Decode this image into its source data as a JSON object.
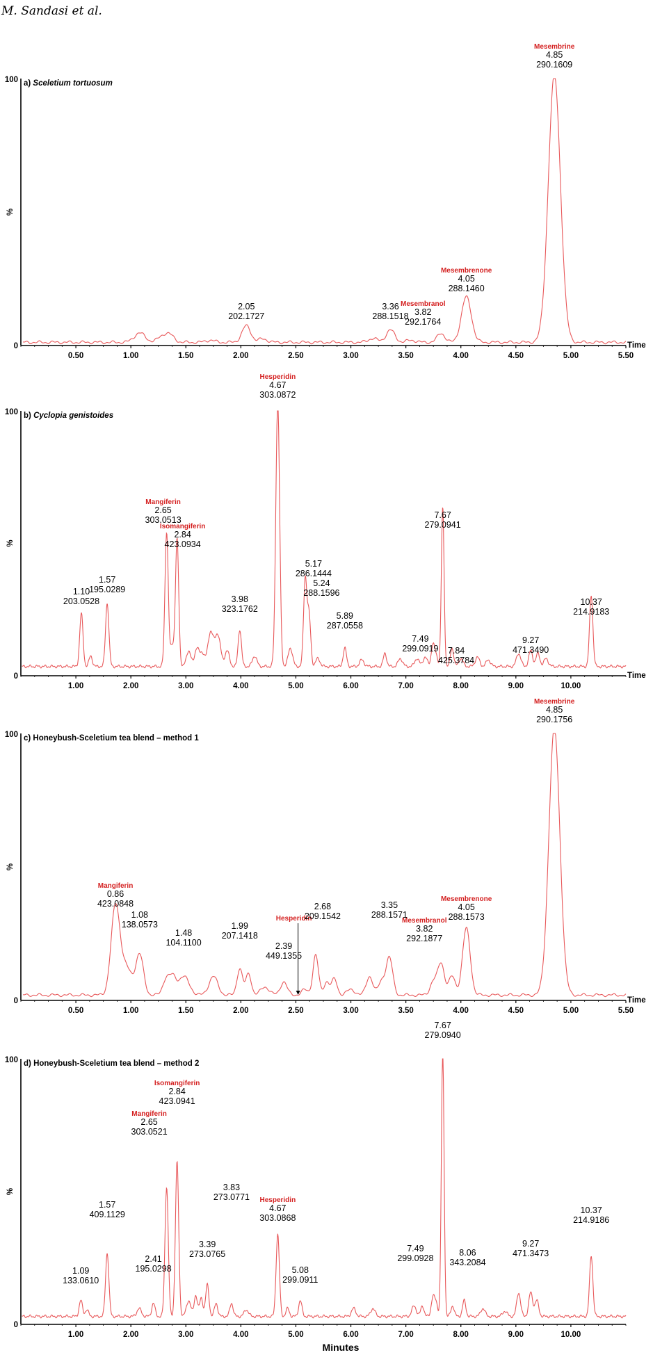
{
  "header": {
    "author": "M. Sandasi et al."
  },
  "colors": {
    "trace": "#e8585a",
    "label": "#d42020",
    "axis": "#000000"
  },
  "chart_data": [
    {
      "type": "line",
      "title_prefix": "a)",
      "title_main": "Sceletium tortuosum",
      "title_italic": true,
      "ylabel": "%",
      "y_top_label": "100",
      "y_zero_label": "0",
      "xlabel_end": "Time",
      "xlim": [
        0,
        5.5
      ],
      "ylim": [
        0,
        100
      ],
      "xticks": [
        "0.50",
        "1.00",
        "1.50",
        "2.00",
        "2.50",
        "3.00",
        "3.50",
        "4.00",
        "4.50",
        "5.00",
        "5.50"
      ],
      "baseline": 1.2,
      "peaks": [
        [
          1.08,
          3.5,
          0.05
        ],
        [
          1.3,
          2.5,
          0.05
        ],
        [
          1.36,
          1.8,
          0.04
        ],
        [
          1.72,
          0.8,
          0.04
        ],
        [
          2.05,
          6.2,
          0.04
        ],
        [
          2.2,
          1.3,
          0.04
        ],
        [
          3.2,
          1.5,
          0.04
        ],
        [
          3.36,
          4.6,
          0.04
        ],
        [
          3.55,
          0.8,
          0.04
        ],
        [
          3.82,
          3.4,
          0.035
        ],
        [
          4.05,
          17,
          0.045
        ],
        [
          4.85,
          100,
          0.055
        ]
      ],
      "annotations": [
        {
          "x": 2.05,
          "name": "",
          "lines": [
            "2.05",
            "202.1727"
          ]
        },
        {
          "x": 3.36,
          "name": "",
          "lines": [
            "3.36",
            "288.1518"
          ]
        },
        {
          "x": 3.82,
          "name": "Mesembranol",
          "lines": [
            "3.82",
            "292.1764"
          ]
        },
        {
          "x": 4.05,
          "name": "Mesembrenone",
          "lines": [
            "4.05",
            "288.1460"
          ]
        },
        {
          "x": 4.85,
          "name": "Mesembrine",
          "lines": [
            "4.85",
            "290.1609"
          ]
        }
      ]
    },
    {
      "type": "line",
      "title_prefix": "b)",
      "title_main": "Cyclopia genistoides",
      "title_italic": true,
      "ylabel": "%",
      "y_top_label": "100",
      "y_zero_label": "0",
      "xlabel_end": "Time",
      "xlim": [
        0,
        11
      ],
      "ylim": [
        0,
        100
      ],
      "xticks": [
        "1.00",
        "2.00",
        "3.00",
        "4.00",
        "5.00",
        "6.00",
        "7.00",
        "8.00",
        "9.00",
        "10.00"
      ],
      "baseline": 3.5,
      "peaks": [
        [
          1.1,
          20,
          0.03
        ],
        [
          1.27,
          4,
          0.03
        ],
        [
          1.57,
          24,
          0.03
        ],
        [
          2.65,
          51,
          0.03
        ],
        [
          2.75,
          8,
          0.03
        ],
        [
          2.84,
          48,
          0.03
        ],
        [
          3.05,
          6,
          0.04
        ],
        [
          3.2,
          7,
          0.04
        ],
        [
          3.3,
          5,
          0.04
        ],
        [
          3.45,
          13,
          0.05
        ],
        [
          3.58,
          12,
          0.05
        ],
        [
          3.75,
          6,
          0.04
        ],
        [
          3.98,
          14,
          0.03
        ],
        [
          4.25,
          4,
          0.04
        ],
        [
          4.67,
          100,
          0.035
        ],
        [
          4.9,
          7,
          0.04
        ],
        [
          5.17,
          33,
          0.03
        ],
        [
          5.24,
          19,
          0.03
        ],
        [
          5.4,
          3,
          0.04
        ],
        [
          5.89,
          7,
          0.03
        ],
        [
          6.2,
          2.5,
          0.04
        ],
        [
          6.62,
          5,
          0.03
        ],
        [
          6.9,
          3,
          0.04
        ],
        [
          7.2,
          3,
          0.04
        ],
        [
          7.35,
          3.5,
          0.04
        ],
        [
          7.49,
          8,
          0.03
        ],
        [
          7.55,
          4,
          0.03
        ],
        [
          7.67,
          60,
          0.025
        ],
        [
          7.84,
          7,
          0.03
        ],
        [
          8.0,
          3,
          0.04
        ],
        [
          8.3,
          3.5,
          0.04
        ],
        [
          8.5,
          2.5,
          0.04
        ],
        [
          9.05,
          5,
          0.04
        ],
        [
          9.27,
          6,
          0.035
        ],
        [
          9.4,
          5,
          0.035
        ],
        [
          9.55,
          3,
          0.04
        ],
        [
          10.37,
          27,
          0.03
        ]
      ],
      "annotations": [
        {
          "x": 1.1,
          "name": "",
          "lines": [
            "1.10",
            "203.0528"
          ]
        },
        {
          "x": 1.57,
          "name": "",
          "lines": [
            "1.57",
            "195.0289"
          ]
        },
        {
          "x": 2.65,
          "name": "Mangiferin",
          "lines": [
            "2.65",
            "303.0513"
          ]
        },
        {
          "x": 2.84,
          "name": "Isomangiferin",
          "lines": [
            "2.84",
            "423.0934"
          ]
        },
        {
          "x": 3.98,
          "name": "",
          "lines": [
            "3.98",
            "323.1762"
          ]
        },
        {
          "x": 4.67,
          "name": "Hesperidin",
          "lines": [
            "4.67",
            "303.0872"
          ]
        },
        {
          "x": 5.17,
          "name": "",
          "lines": [
            "5.17",
            "286.1444"
          ]
        },
        {
          "x": 5.24,
          "name": "",
          "lines": [
            "5.24",
            "288.1596"
          ]
        },
        {
          "x": 5.89,
          "name": "",
          "lines": [
            "5.89",
            "287.0558"
          ]
        },
        {
          "x": 7.49,
          "name": "",
          "lines": [
            "7.49",
            "299.0919"
          ]
        },
        {
          "x": 7.67,
          "name": "",
          "lines": [
            "7.67",
            "279.0941"
          ]
        },
        {
          "x": 7.84,
          "name": "",
          "lines": [
            "7.84",
            "425.3784"
          ]
        },
        {
          "x": 9.27,
          "name": "",
          "lines": [
            "9.27",
            "471.3490"
          ]
        },
        {
          "x": 10.37,
          "name": "",
          "lines": [
            "10.37",
            "214.9183"
          ]
        }
      ]
    },
    {
      "type": "line",
      "title_prefix": "c)",
      "title_main": "Honeybush-Sceletium tea blend – method 1",
      "title_italic": false,
      "ylabel": "%",
      "y_top_label": "100",
      "y_zero_label": "0",
      "xlabel_end": "Time",
      "xlim": [
        0,
        5.5
      ],
      "ylim": [
        0,
        100
      ],
      "xticks": [
        "0.50",
        "1.00",
        "1.50",
        "2.00",
        "2.50",
        "3.00",
        "3.50",
        "4.00",
        "4.50",
        "5.00",
        "5.50"
      ],
      "baseline": 2,
      "peaks": [
        [
          0.86,
          33,
          0.04
        ],
        [
          0.96,
          10,
          0.05
        ],
        [
          1.08,
          15,
          0.035
        ],
        [
          1.32,
          6,
          0.03
        ],
        [
          1.38,
          6,
          0.03
        ],
        [
          1.48,
          7,
          0.05
        ],
        [
          1.75,
          7,
          0.04
        ],
        [
          1.99,
          10,
          0.025
        ],
        [
          2.07,
          8,
          0.025
        ],
        [
          2.22,
          3,
          0.04
        ],
        [
          2.39,
          5,
          0.03
        ],
        [
          2.58,
          2,
          0.03
        ],
        [
          2.68,
          15,
          0.025
        ],
        [
          2.78,
          5,
          0.025
        ],
        [
          2.85,
          6,
          0.025
        ],
        [
          3.0,
          2,
          0.04
        ],
        [
          3.17,
          7,
          0.03
        ],
        [
          3.28,
          5,
          0.03
        ],
        [
          3.35,
          14,
          0.03
        ],
        [
          3.75,
          5,
          0.03
        ],
        [
          3.82,
          12,
          0.03
        ],
        [
          3.92,
          7,
          0.03
        ],
        [
          4.05,
          25,
          0.035
        ],
        [
          4.85,
          100,
          0.05
        ]
      ],
      "annotations": [
        {
          "x": 0.86,
          "name": "Mangiferin",
          "lines": [
            "0.86",
            "423.0848"
          ]
        },
        {
          "x": 1.08,
          "name": "",
          "lines": [
            "1.08",
            "138.0573"
          ]
        },
        {
          "x": 1.48,
          "name": "",
          "lines": [
            "1.48",
            "104.1100"
          ]
        },
        {
          "x": 1.99,
          "name": "",
          "lines": [
            "1.99",
            "207.1418"
          ]
        },
        {
          "x": 2.39,
          "name": "",
          "lines": [
            "2.39",
            "449.1355"
          ]
        },
        {
          "x": 2.52,
          "name": "Hesperidin",
          "lines": []
        },
        {
          "x": 2.68,
          "name": "",
          "lines": [
            "2.68",
            "209.1542"
          ]
        },
        {
          "x": 3.35,
          "name": "",
          "lines": [
            "3.35",
            "288.1571"
          ]
        },
        {
          "x": 3.82,
          "name": "Mesembranol",
          "lines": [
            "3.82",
            "292.1877"
          ]
        },
        {
          "x": 4.05,
          "name": "Mesembrenone",
          "lines": [
            "4.05",
            "288.1573"
          ]
        },
        {
          "x": 4.85,
          "name": "Mesembrine",
          "lines": [
            "4.85",
            "290.1756"
          ]
        }
      ]
    },
    {
      "type": "line",
      "title_prefix": "d)",
      "title_main": "Honeybush-Sceletium tea blend – method 2",
      "title_italic": false,
      "ylabel": "%",
      "y_top_label": "100",
      "y_zero_label": "0",
      "xlabel_end": "",
      "xlabel_bottom": "Minutes",
      "xlim": [
        0,
        11
      ],
      "ylim": [
        0,
        100
      ],
      "xticks": [
        "1.00",
        "2.00",
        "3.00",
        "4.00",
        "5.00",
        "6.00",
        "7.00",
        "8.00",
        "9.00",
        "10.00"
      ],
      "baseline": 3,
      "peaks": [
        [
          1.09,
          6,
          0.03
        ],
        [
          1.2,
          2.5,
          0.03
        ],
        [
          1.57,
          24,
          0.03
        ],
        [
          2.15,
          3,
          0.04
        ],
        [
          2.41,
          5,
          0.03
        ],
        [
          2.65,
          49,
          0.03
        ],
        [
          2.84,
          58,
          0.03
        ],
        [
          3.05,
          6,
          0.04
        ],
        [
          3.18,
          8,
          0.03
        ],
        [
          3.28,
          7,
          0.03
        ],
        [
          3.39,
          12,
          0.03
        ],
        [
          3.55,
          5,
          0.03
        ],
        [
          3.83,
          5,
          0.03
        ],
        [
          4.1,
          2.5,
          0.04
        ],
        [
          4.67,
          31,
          0.03
        ],
        [
          4.85,
          3,
          0.03
        ],
        [
          5.08,
          6,
          0.03
        ],
        [
          6.05,
          3,
          0.04
        ],
        [
          6.4,
          3,
          0.04
        ],
        [
          7.15,
          4,
          0.04
        ],
        [
          7.3,
          4,
          0.03
        ],
        [
          7.49,
          7,
          0.03
        ],
        [
          7.55,
          5,
          0.03
        ],
        [
          7.67,
          100,
          0.025
        ],
        [
          7.85,
          4,
          0.03
        ],
        [
          8.06,
          6,
          0.03
        ],
        [
          8.4,
          3,
          0.04
        ],
        [
          8.8,
          2,
          0.04
        ],
        [
          9.05,
          9,
          0.035
        ],
        [
          9.27,
          9,
          0.035
        ],
        [
          9.38,
          6,
          0.035
        ],
        [
          10.37,
          23,
          0.03
        ]
      ],
      "annotations": [
        {
          "x": 1.09,
          "name": "",
          "lines": [
            "1.09",
            "133.0610"
          ]
        },
        {
          "x": 1.57,
          "name": "",
          "lines": [
            "1.57",
            "409.1129"
          ]
        },
        {
          "x": 2.41,
          "name": "",
          "lines": [
            "2.41",
            "195.0298"
          ]
        },
        {
          "x": 2.65,
          "name": "Mangiferin",
          "lines": [
            "2.65",
            "303.0521"
          ]
        },
        {
          "x": 2.84,
          "name": "Isomangiferin",
          "lines": [
            "2.84",
            "423.0941"
          ]
        },
        {
          "x": 3.39,
          "name": "",
          "lines": [
            "3.39",
            "273.0765"
          ]
        },
        {
          "x": 3.83,
          "name": "",
          "lines": [
            "3.83",
            "273.0771"
          ]
        },
        {
          "x": 4.67,
          "name": "Hesperidin",
          "lines": [
            "4.67",
            "303.0868"
          ]
        },
        {
          "x": 5.08,
          "name": "",
          "lines": [
            "5.08",
            "299.0911"
          ]
        },
        {
          "x": 7.49,
          "name": "",
          "lines": [
            "7.49",
            "299.0928"
          ]
        },
        {
          "x": 7.67,
          "name": "",
          "lines": [
            "7.67",
            "279.0940"
          ]
        },
        {
          "x": 8.06,
          "name": "",
          "lines": [
            "8.06",
            "343.2084"
          ]
        },
        {
          "x": 9.27,
          "name": "",
          "lines": [
            "9.27",
            "471.3473"
          ]
        },
        {
          "x": 10.37,
          "name": "",
          "lines": [
            "10.37",
            "214.9186"
          ]
        }
      ]
    }
  ]
}
